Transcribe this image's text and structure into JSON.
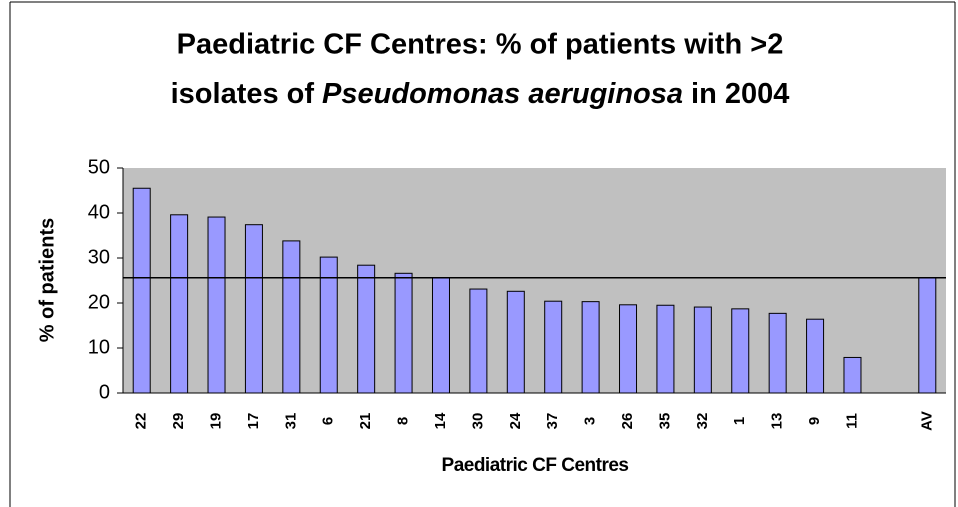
{
  "chart_data": {
    "type": "bar",
    "title": {
      "line1": "Paediatric CF Centres: % of patients with >2",
      "line2": [
        "isolates of",
        "Pseudomonas aeruginosa",
        "in 2004"
      ]
    },
    "x_label": "Paediatric CF Centres",
    "y_label": "% of patients",
    "categories": [
      "22",
      "29",
      "19",
      "17",
      "31",
      "6",
      "21",
      "8",
      "14",
      "30",
      "24",
      "37",
      "3",
      "26",
      "35",
      "32",
      "1",
      "13",
      "9",
      "11",
      null,
      "AV"
    ],
    "values": [
      45.5,
      39.6,
      39.1,
      37.4,
      33.8,
      30.2,
      28.4,
      26.6,
      25.6,
      23.1,
      22.6,
      20.4,
      20.3,
      19.6,
      19.5,
      19.1,
      18.7,
      17.7,
      16.4,
      7.9,
      null,
      25.6
    ],
    "color": "#9999ff",
    "reference_line": 25.6,
    "ylim": [
      0,
      50
    ],
    "yticks": [
      0,
      10,
      20,
      30,
      40,
      50
    ],
    "plot_background": "#c0c0c0"
  }
}
